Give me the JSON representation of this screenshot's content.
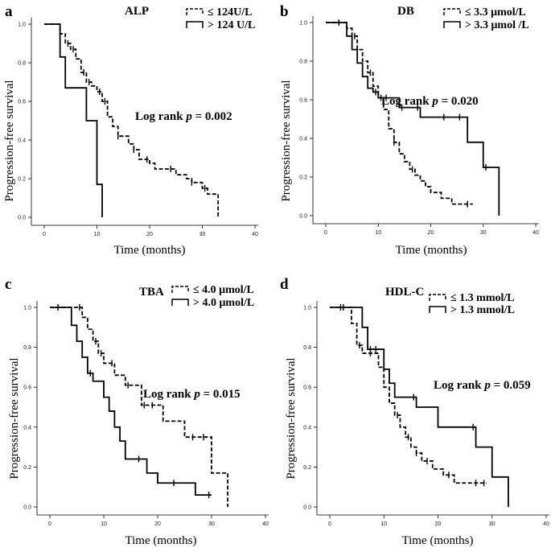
{
  "chart_data": [
    {
      "type": "line",
      "panel": "a",
      "title": "ALP",
      "xlabel": "Time (months)",
      "ylabel": "Progression-free survival",
      "xlim": [
        0,
        40
      ],
      "ylim": [
        0,
        1
      ],
      "xticks": [
        "0",
        "10",
        "20",
        "30",
        "40"
      ],
      "yticks": [
        "0.0",
        "0.2",
        "0.4",
        "0.6",
        "0.8",
        "1.0"
      ],
      "annotation": {
        "prefix": "Log rank ",
        "p": "p",
        "value": " = 0.002"
      },
      "legend_position": "top-right",
      "series": [
        {
          "name": "≤ 124U/L",
          "style": "dashed",
          "x": [
            0,
            2,
            3,
            4,
            5,
            6,
            7,
            8,
            9,
            10,
            11,
            12,
            13,
            14,
            16,
            17,
            18,
            20,
            21,
            23,
            25,
            27,
            28,
            29,
            30,
            31,
            32,
            33
          ],
          "y": [
            1.0,
            1.0,
            0.95,
            0.9,
            0.87,
            0.82,
            0.75,
            0.7,
            0.68,
            0.65,
            0.6,
            0.52,
            0.47,
            0.42,
            0.38,
            0.35,
            0.3,
            0.28,
            0.25,
            0.25,
            0.22,
            0.2,
            0.18,
            0.18,
            0.15,
            0.12,
            0.12,
            0.0
          ],
          "censored_x": [
            4.5,
            5.5,
            7.5,
            8.5,
            10.5,
            11.5,
            14,
            17,
            19.5,
            24,
            28,
            30.5
          ]
        },
        {
          "name": "> 124 U/L",
          "style": "solid",
          "x": [
            0,
            2,
            3,
            4,
            6,
            8,
            10,
            11
          ],
          "y": [
            1.0,
            1.0,
            0.83,
            0.67,
            0.67,
            0.5,
            0.17,
            0.0
          ],
          "censored_x": []
        }
      ]
    },
    {
      "type": "line",
      "panel": "b",
      "title": "DB",
      "xlabel": "Time (months)",
      "ylabel": "Progression-free survival",
      "xlim": [
        0,
        40
      ],
      "ylim": [
        0,
        1
      ],
      "xticks": [
        "0",
        "10",
        "20",
        "30",
        "40"
      ],
      "yticks": [
        "0.0",
        "0.2",
        "0.4",
        "0.6",
        "0.8",
        "1.0"
      ],
      "annotation": {
        "prefix": "Log rank ",
        "p": "p",
        "value": " = 0.020"
      },
      "legend_position": "top-right",
      "series": [
        {
          "name": "≤ 3.3 μmol/L",
          "style": "dashed",
          "x": [
            0,
            2,
            4,
            5,
            6,
            7,
            8,
            9,
            10,
            11,
            12,
            13,
            14,
            15,
            16,
            17,
            18,
            19,
            20,
            22,
            24,
            26,
            28
          ],
          "y": [
            1.0,
            1.0,
            0.97,
            0.93,
            0.86,
            0.8,
            0.74,
            0.67,
            0.61,
            0.55,
            0.45,
            0.38,
            0.32,
            0.28,
            0.24,
            0.21,
            0.18,
            0.15,
            0.12,
            0.09,
            0.06,
            0.06,
            0.06
          ],
          "censored_x": [
            5.5,
            8.5,
            10.5,
            13,
            16.5,
            27
          ]
        },
        {
          "name": "> 3.3 μmol /L",
          "style": "solid",
          "x": [
            0,
            2,
            4,
            5,
            6,
            7,
            8,
            9,
            10,
            11,
            12,
            14,
            16,
            18,
            20,
            22,
            24,
            27,
            30,
            33
          ],
          "y": [
            1.0,
            1.0,
            0.93,
            0.86,
            0.79,
            0.72,
            0.66,
            0.64,
            0.61,
            0.61,
            0.61,
            0.56,
            0.56,
            0.51,
            0.51,
            0.51,
            0.51,
            0.38,
            0.25,
            0.0
          ],
          "censored_x": [
            2.5,
            9.5,
            11.5,
            14.5,
            17.5,
            22.5,
            25.5,
            30.5
          ]
        }
      ]
    },
    {
      "type": "line",
      "panel": "c",
      "title": "TBA",
      "xlabel": "Time (months)",
      "ylabel": "Progression-free survival",
      "xlim": [
        0,
        40
      ],
      "ylim": [
        0,
        1
      ],
      "xticks": [
        "0",
        "10",
        "20",
        "30",
        "40"
      ],
      "yticks": [
        "0.0",
        "0.2",
        "0.4",
        "0.6",
        "0.8",
        "1.0"
      ],
      "annotation": {
        "prefix": "Log rank ",
        "p": "p",
        "value": " = 0.015"
      },
      "legend_position": "top-right",
      "series": [
        {
          "name": "≤ 4.0 μmol/L",
          "style": "dashed",
          "x": [
            0,
            4,
            6,
            7,
            8,
            9,
            10,
            12,
            14,
            17,
            19,
            21,
            25,
            27,
            30,
            31,
            33
          ],
          "y": [
            1.0,
            1.0,
            0.95,
            0.89,
            0.83,
            0.77,
            0.72,
            0.66,
            0.61,
            0.51,
            0.51,
            0.43,
            0.35,
            0.35,
            0.17,
            0.17,
            0.0
          ],
          "censored_x": [
            5.5,
            8.5,
            9.5,
            11.5,
            14.5,
            17.5,
            19,
            26.5,
            28.5
          ]
        },
        {
          "name": "> 4.0 μmol/L",
          "style": "solid",
          "x": [
            0,
            2,
            4,
            5,
            6,
            7,
            8,
            10,
            11,
            12,
            13,
            14,
            16,
            18,
            20,
            24,
            27,
            30
          ],
          "y": [
            1.0,
            1.0,
            0.91,
            0.83,
            0.75,
            0.67,
            0.63,
            0.55,
            0.48,
            0.4,
            0.33,
            0.24,
            0.24,
            0.17,
            0.12,
            0.12,
            0.06,
            0.06
          ],
          "censored_x": [
            1.5,
            7.5,
            16.5,
            23,
            29.5
          ]
        }
      ]
    },
    {
      "type": "line",
      "panel": "d",
      "title": "HDL-C",
      "xlabel": "Time (months)",
      "ylabel": "Progression-free survival",
      "xlim": [
        0,
        40
      ],
      "ylim": [
        0,
        1
      ],
      "xticks": [
        "0",
        "10",
        "20",
        "30",
        "40"
      ],
      "yticks": [
        "0.0",
        "0.2",
        "0.4",
        "0.6",
        "0.8",
        "1.0"
      ],
      "annotation": {
        "prefix": "Log rank ",
        "p": "p",
        "value": " = 0.059"
      },
      "legend_position": "top-right",
      "series": [
        {
          "name": "≤ 1.3 mmol/L",
          "style": "dashed",
          "x": [
            0,
            3,
            4,
            5,
            6,
            7,
            9,
            10,
            11,
            12,
            13,
            14,
            15,
            16,
            17,
            19,
            21,
            23,
            26,
            29
          ],
          "y": [
            1.0,
            1.0,
            0.92,
            0.81,
            0.77,
            0.77,
            0.7,
            0.6,
            0.52,
            0.46,
            0.4,
            0.35,
            0.3,
            0.27,
            0.23,
            0.19,
            0.16,
            0.12,
            0.12,
            0.12
          ],
          "censored_x": [
            2,
            5.5,
            7.5,
            12.5,
            14.5,
            16,
            18,
            22,
            27,
            28.5
          ]
        },
        {
          "name": "> 1.3 mmol/L",
          "style": "solid",
          "x": [
            0,
            2,
            6,
            7,
            9,
            10,
            11,
            12,
            16,
            17,
            20,
            27,
            28,
            30,
            31,
            33
          ],
          "y": [
            1.0,
            1.0,
            0.9,
            0.79,
            0.79,
            0.69,
            0.62,
            0.55,
            0.5,
            0.5,
            0.4,
            0.3,
            0.3,
            0.15,
            0.15,
            0.0
          ],
          "censored_x": [
            2.5,
            7.5,
            8.5,
            15.5,
            26.5
          ]
        }
      ]
    }
  ]
}
